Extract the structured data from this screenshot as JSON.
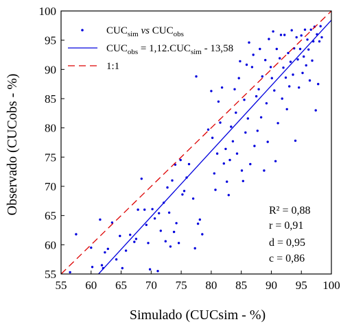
{
  "chart_data": {
    "type": "scatter",
    "xlabel": "Simulado (CUCsim - %)",
    "ylabel": "Observado (CUCobs - %)",
    "xlim": [
      55,
      100
    ],
    "ylim": [
      55,
      100
    ],
    "xticks": [
      55,
      60,
      65,
      70,
      75,
      80,
      85,
      90,
      95,
      100
    ],
    "yticks": [
      55,
      60,
      65,
      70,
      75,
      80,
      85,
      90,
      95,
      100
    ],
    "grid": false,
    "legend_position": "top-left",
    "legend": {
      "scatter": {
        "prefix": "CUC",
        "sub1": "sim",
        "mid": " vs ",
        "prefix2": "CUC",
        "sub2": "obs"
      },
      "fit": {
        "prefix": "CUC",
        "sub": "obs",
        "rest": " = 1,12.CUC",
        "sub2": "sim",
        "tail": " - 13,58"
      },
      "identity": "1:1"
    },
    "stats": [
      "R² = 0,88",
      "r = 0,91",
      "d = 0,95",
      "c = 0,86"
    ],
    "colors": {
      "points": "#0000dd",
      "fit": "#0000dd",
      "identity": "#dd0000"
    },
    "series": [
      {
        "kind": "points",
        "points": [
          [
            56.5,
            55.3
          ],
          [
            57.5,
            61.8
          ],
          [
            60.0,
            59.5
          ],
          [
            60.2,
            56.2
          ],
          [
            61.5,
            64.3
          ],
          [
            61.8,
            56.5
          ],
          [
            62.0,
            56.0
          ],
          [
            62.3,
            58.7
          ],
          [
            62.8,
            59.3
          ],
          [
            63.5,
            63.8
          ],
          [
            64.2,
            57.5
          ],
          [
            64.8,
            61.5
          ],
          [
            65.2,
            56.0
          ],
          [
            65.8,
            59.0
          ],
          [
            66.5,
            61.7
          ],
          [
            67.2,
            60.5
          ],
          [
            67.5,
            61.0
          ],
          [
            67.8,
            66.0
          ],
          [
            68.4,
            71.3
          ],
          [
            68.9,
            66.0
          ],
          [
            69.2,
            63.4
          ],
          [
            69.5,
            60.3
          ],
          [
            69.8,
            55.8
          ],
          [
            70.2,
            66.1
          ],
          [
            70.6,
            64.5
          ],
          [
            71.1,
            55.5
          ],
          [
            71.3,
            65.4
          ],
          [
            71.6,
            62.4
          ],
          [
            72.1,
            67.2
          ],
          [
            72.4,
            60.6
          ],
          [
            72.7,
            69.8
          ],
          [
            73.0,
            65.5
          ],
          [
            73.2,
            59.7
          ],
          [
            73.5,
            71.0
          ],
          [
            73.8,
            62.2
          ],
          [
            74.0,
            73.7
          ],
          [
            74.2,
            63.7
          ],
          [
            74.6,
            60.3
          ],
          [
            74.9,
            74.5
          ],
          [
            75.2,
            68.6
          ],
          [
            75.5,
            69.2
          ],
          [
            75.9,
            71.5
          ],
          [
            76.3,
            73.8
          ],
          [
            77.0,
            67.9
          ],
          [
            77.3,
            59.4
          ],
          [
            77.5,
            88.8
          ],
          [
            77.8,
            63.6
          ],
          [
            78.1,
            64.3
          ],
          [
            78.5,
            61.8
          ],
          [
            79.5,
            79.7
          ],
          [
            80.0,
            86.3
          ],
          [
            80.2,
            78.3
          ],
          [
            80.5,
            72.2
          ],
          [
            80.7,
            69.4
          ],
          [
            81.0,
            75.6
          ],
          [
            81.2,
            84.5
          ],
          [
            81.5,
            80.9
          ],
          [
            81.8,
            86.9
          ],
          [
            82.1,
            73.9
          ],
          [
            82.4,
            76.4
          ],
          [
            82.6,
            70.8
          ],
          [
            82.9,
            68.5
          ],
          [
            83.1,
            74.5
          ],
          [
            83.3,
            80.2
          ],
          [
            83.6,
            77.7
          ],
          [
            83.9,
            86.6
          ],
          [
            84.1,
            82.6
          ],
          [
            84.3,
            75.6
          ],
          [
            84.6,
            88.5
          ],
          [
            84.8,
            91.4
          ],
          [
            85.1,
            72.7
          ],
          [
            85.3,
            70.9
          ],
          [
            85.5,
            84.8
          ],
          [
            85.7,
            79.2
          ],
          [
            85.9,
            90.8
          ],
          [
            86.1,
            81.6
          ],
          [
            86.3,
            94.6
          ],
          [
            86.5,
            73.8
          ],
          [
            86.8,
            90.4
          ],
          [
            87.0,
            92.5
          ],
          [
            87.2,
            76.9
          ],
          [
            87.5,
            85.4
          ],
          [
            87.7,
            79.5
          ],
          [
            87.9,
            86.6
          ],
          [
            88.1,
            93.5
          ],
          [
            88.3,
            81.8
          ],
          [
            88.5,
            88.8
          ],
          [
            88.8,
            72.7
          ],
          [
            89.0,
            91.6
          ],
          [
            89.2,
            84.2
          ],
          [
            89.4,
            77.6
          ],
          [
            89.6,
            95.2
          ],
          [
            89.9,
            90.4
          ],
          [
            90.1,
            88.5
          ],
          [
            90.3,
            96.5
          ],
          [
            90.5,
            86.4
          ],
          [
            90.7,
            74.3
          ],
          [
            90.9,
            93.5
          ],
          [
            91.1,
            80.8
          ],
          [
            91.4,
            91.9
          ],
          [
            91.6,
            95.9
          ],
          [
            91.8,
            85.0
          ],
          [
            92.0,
            90.3
          ],
          [
            92.2,
            95.9
          ],
          [
            92.4,
            88.6
          ],
          [
            92.6,
            83.2
          ],
          [
            92.8,
            92.8
          ],
          [
            93.0,
            87.1
          ],
          [
            93.2,
            91.3
          ],
          [
            93.4,
            96.7
          ],
          [
            93.6,
            89.1
          ],
          [
            93.8,
            93.6
          ],
          [
            94.0,
            77.8
          ],
          [
            94.2,
            95.5
          ],
          [
            94.4,
            91.7
          ],
          [
            94.6,
            86.9
          ],
          [
            94.8,
            93.5
          ],
          [
            95.0,
            95.8
          ],
          [
            95.2,
            89.4
          ],
          [
            95.4,
            92.2
          ],
          [
            95.6,
            96.8
          ],
          [
            95.8,
            90.7
          ],
          [
            96.0,
            95.1
          ],
          [
            96.2,
            93.4
          ],
          [
            96.4,
            88.1
          ],
          [
            96.6,
            96.8
          ],
          [
            96.8,
            91.5
          ],
          [
            97.0,
            94.8
          ],
          [
            97.2,
            97.3
          ],
          [
            97.4,
            83.0
          ],
          [
            97.6,
            96.0
          ],
          [
            97.8,
            87.5
          ],
          [
            98.0,
            94.8
          ],
          [
            98.2,
            97.4
          ],
          [
            98.4,
            95.5
          ]
        ]
      },
      {
        "kind": "fit",
        "name": "",
        "slope": 1.12,
        "intercept": -13.58
      },
      {
        "kind": "identity",
        "name": "1:1"
      }
    ]
  }
}
